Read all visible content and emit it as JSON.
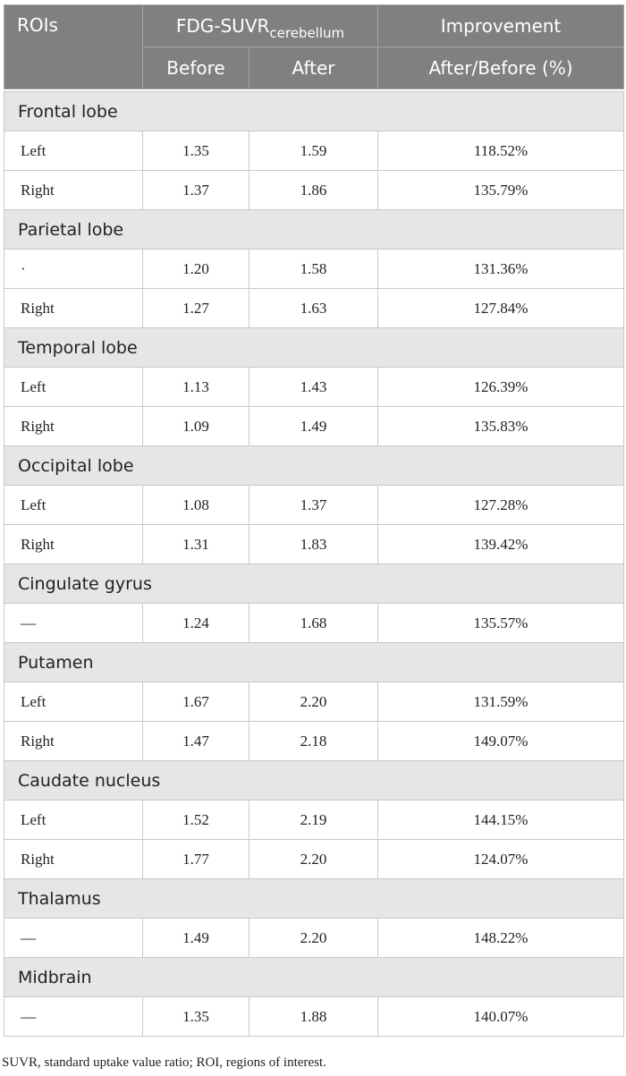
{
  "header": {
    "rois": "ROIs",
    "fdg_main": "FDG-SUVR",
    "fdg_sub": "cerebellum",
    "improvement": "Improvement",
    "before": "Before",
    "after": "After",
    "ratio": "After/Before (%)"
  },
  "groups": [
    {
      "name": "Frontal lobe",
      "rows": [
        {
          "side": "Left",
          "before": "1.35",
          "after": "1.59",
          "improvement": "118.52%"
        },
        {
          "side": "Right",
          "before": "1.37",
          "after": "1.86",
          "improvement": "135.79%"
        }
      ]
    },
    {
      "name": "Parietal lobe",
      "rows": [
        {
          "side": "·",
          "before": "1.20",
          "after": "1.58",
          "improvement": "131.36%"
        },
        {
          "side": "Right",
          "before": "1.27",
          "after": "1.63",
          "improvement": "127.84%"
        }
      ]
    },
    {
      "name": "Temporal lobe",
      "rows": [
        {
          "side": "Left",
          "before": "1.13",
          "after": "1.43",
          "improvement": "126.39%"
        },
        {
          "side": "Right",
          "before": "1.09",
          "after": "1.49",
          "improvement": "135.83%"
        }
      ]
    },
    {
      "name": "Occipital lobe",
      "rows": [
        {
          "side": "Left",
          "before": "1.08",
          "after": "1.37",
          "improvement": "127.28%"
        },
        {
          "side": "Right",
          "before": "1.31",
          "after": "1.83",
          "improvement": "139.42%"
        }
      ]
    },
    {
      "name": "Cingulate gyrus",
      "rows": [
        {
          "side": "—",
          "before": "1.24",
          "after": "1.68",
          "improvement": "135.57%"
        }
      ]
    },
    {
      "name": "Putamen",
      "rows": [
        {
          "side": "Left",
          "before": "1.67",
          "after": "2.20",
          "improvement": "131.59%"
        },
        {
          "side": "Right",
          "before": "1.47",
          "after": "2.18",
          "improvement": "149.07%"
        }
      ]
    },
    {
      "name": "Caudate nucleus",
      "rows": [
        {
          "side": "Left",
          "before": "1.52",
          "after": "2.19",
          "improvement": "144.15%"
        },
        {
          "side": "Right",
          "before": "1.77",
          "after": "2.20",
          "improvement": "124.07%"
        }
      ]
    },
    {
      "name": "Thalamus",
      "rows": [
        {
          "side": "—",
          "before": "1.49",
          "after": "2.20",
          "improvement": "148.22%"
        }
      ]
    },
    {
      "name": "Midbrain",
      "rows": [
        {
          "side": "—",
          "before": "1.35",
          "after": "1.88",
          "improvement": "140.07%"
        }
      ]
    }
  ],
  "footnote": "SUVR, standard uptake value ratio; ROI, regions of interest."
}
